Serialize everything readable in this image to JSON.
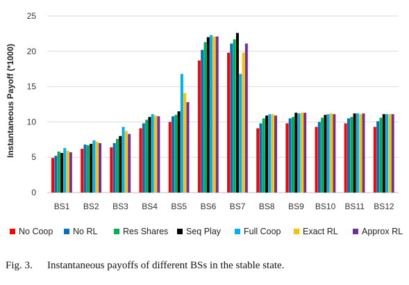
{
  "chart_data": {
    "type": "bar",
    "title": "",
    "xlabel": "",
    "ylabel": "Instantaneous Payoff (*1000)",
    "ylim": [
      0,
      25
    ],
    "yticks": [
      0,
      5,
      10,
      15,
      20,
      25
    ],
    "grid": true,
    "legend_position": "bottom",
    "categories": [
      "BS1",
      "BS2",
      "BS3",
      "BS4",
      "BS5",
      "BS6",
      "BS7",
      "BS8",
      "BS9",
      "BS10",
      "BS11",
      "BS12"
    ],
    "series": [
      {
        "name": "No Coop",
        "color": "#ff0000",
        "values": [
          4.9,
          6.2,
          6.4,
          9.1,
          10.0,
          18.7,
          19.8,
          9.1,
          9.8,
          9.3,
          9.8,
          9.3
        ]
      },
      {
        "name": "No RL",
        "color": "#0070c0",
        "values": [
          5.2,
          6.8,
          7.0,
          9.8,
          10.8,
          20.2,
          21.1,
          9.8,
          10.5,
          10.0,
          10.5,
          10.1
        ]
      },
      {
        "name": "Res Shares",
        "color": "#00b050",
        "values": [
          5.8,
          6.7,
          7.6,
          10.3,
          11.0,
          21.3,
          21.7,
          10.5,
          10.7,
          10.6,
          10.7,
          10.6
        ]
      },
      {
        "name": "Seq Play",
        "color": "#000000",
        "values": [
          5.6,
          6.9,
          8.0,
          10.7,
          11.5,
          22.0,
          22.6,
          10.9,
          11.3,
          11.0,
          11.2,
          11.1
        ]
      },
      {
        "name": "Full Coop",
        "color": "#00b0f0",
        "values": [
          6.3,
          7.4,
          9.3,
          11.1,
          16.8,
          22.3,
          16.8,
          11.1,
          11.2,
          11.1,
          11.2,
          11.1
        ]
      },
      {
        "name": "Exact RL",
        "color": "#ffc000",
        "values": [
          5.9,
          7.2,
          8.7,
          10.9,
          14.1,
          22.1,
          19.8,
          11.1,
          11.3,
          11.2,
          11.1,
          11.1
        ]
      },
      {
        "name": "Approx RL",
        "color": "#7030a0",
        "values": [
          5.7,
          7.0,
          8.3,
          10.8,
          12.8,
          22.1,
          21.1,
          10.9,
          11.3,
          11.1,
          11.2,
          11.1
        ]
      }
    ]
  },
  "caption": {
    "label": "Fig. 3.",
    "text": "Instantaneous payoffs of different BSs in the stable state."
  }
}
